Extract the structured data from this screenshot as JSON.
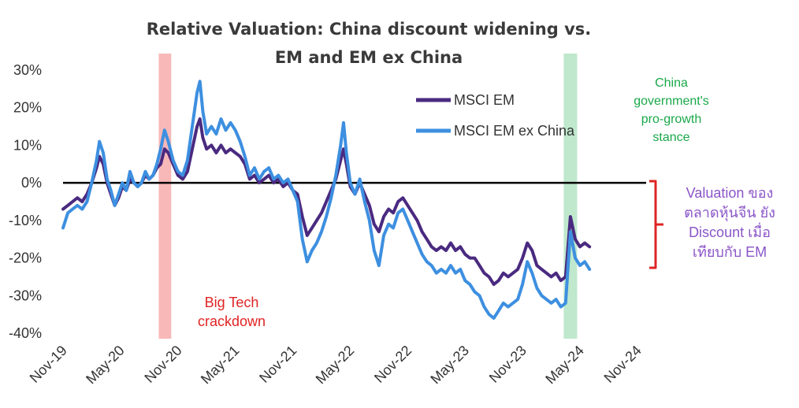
{
  "colors": {
    "msci_em": "#4a2a80",
    "msci_em_ex_china": "#3d8fe0",
    "red_band": "#f8b8b8",
    "green_band": "#bfe8cc",
    "bracket": "#e02424",
    "zero_line": "#000000"
  },
  "chart_data": {
    "type": "line",
    "title_line1": "Relative Valuation: China discount widening vs.",
    "title_line2": "EM and EM ex China",
    "xlabel": "",
    "ylabel": "",
    "x_ticks": [
      "Nov-19",
      "May-20",
      "Nov-20",
      "May-21",
      "Nov-21",
      "May-22",
      "Nov-22",
      "May-23",
      "Nov-23",
      "May-24",
      "Nov-24"
    ],
    "xlim": [
      0,
      60.5
    ],
    "ylim": [
      -40,
      30
    ],
    "y_ticks": [
      30,
      20,
      10,
      0,
      -10,
      -20,
      -30,
      -40
    ],
    "y_tick_labels": [
      "30%",
      "20%",
      "10%",
      "0%",
      "-10%",
      "-20%",
      "-30%",
      "-40%"
    ],
    "x_unit": "months since Nov-19",
    "series": [
      {
        "name": "MSCI EM",
        "color": "#4a2a80",
        "points": [
          [
            0,
            -7
          ],
          [
            0.5,
            -6
          ],
          [
            1,
            -5
          ],
          [
            1.5,
            -4
          ],
          [
            2,
            -5
          ],
          [
            2.5,
            -3
          ],
          [
            3,
            0
          ],
          [
            3.5,
            4
          ],
          [
            3.8,
            7
          ],
          [
            4.2,
            5
          ],
          [
            4.6,
            0
          ],
          [
            5,
            -3
          ],
          [
            5.4,
            -6
          ],
          [
            5.8,
            -4
          ],
          [
            6.2,
            -1
          ],
          [
            6.6,
            -2
          ],
          [
            7,
            1
          ],
          [
            7.4,
            0
          ],
          [
            7.8,
            -1
          ],
          [
            8.2,
            0
          ],
          [
            8.6,
            2
          ],
          [
            9,
            1
          ],
          [
            9.4,
            2
          ],
          [
            9.8,
            4
          ],
          [
            10.2,
            5
          ],
          [
            10.6,
            9
          ],
          [
            11,
            8
          ],
          [
            11.5,
            5
          ],
          [
            12,
            2
          ],
          [
            12.5,
            1
          ],
          [
            13,
            3
          ],
          [
            13.5,
            9
          ],
          [
            14,
            15
          ],
          [
            14.3,
            17
          ],
          [
            14.6,
            12
          ],
          [
            15,
            9
          ],
          [
            15.5,
            10
          ],
          [
            16,
            8
          ],
          [
            16.5,
            10
          ],
          [
            17,
            8
          ],
          [
            17.5,
            9
          ],
          [
            18,
            8
          ],
          [
            18.5,
            7
          ],
          [
            19,
            5
          ],
          [
            19.5,
            1
          ],
          [
            20,
            2
          ],
          [
            20.5,
            0
          ],
          [
            21,
            1
          ],
          [
            21.5,
            2
          ],
          [
            22,
            0
          ],
          [
            22.5,
            1
          ],
          [
            23,
            -1
          ],
          [
            23.5,
            0
          ],
          [
            24,
            -2
          ],
          [
            24.5,
            -3
          ],
          [
            25,
            -9
          ],
          [
            25.5,
            -14
          ],
          [
            26,
            -12
          ],
          [
            26.5,
            -10
          ],
          [
            27,
            -8
          ],
          [
            27.5,
            -5
          ],
          [
            28,
            -2
          ],
          [
            28.5,
            1
          ],
          [
            29,
            6
          ],
          [
            29.3,
            9
          ],
          [
            29.6,
            5
          ],
          [
            30,
            -1
          ],
          [
            30.5,
            -3
          ],
          [
            31,
            0
          ],
          [
            31.5,
            -3
          ],
          [
            32,
            -6
          ],
          [
            32.5,
            -11
          ],
          [
            33,
            -13
          ],
          [
            33.5,
            -9
          ],
          [
            34,
            -7
          ],
          [
            34.5,
            -8
          ],
          [
            35,
            -5
          ],
          [
            35.5,
            -4
          ],
          [
            36,
            -6
          ],
          [
            36.5,
            -8
          ],
          [
            37,
            -10
          ],
          [
            37.5,
            -13
          ],
          [
            38,
            -15
          ],
          [
            38.5,
            -17
          ],
          [
            39,
            -18
          ],
          [
            39.5,
            -17
          ],
          [
            40,
            -18
          ],
          [
            40.5,
            -16
          ],
          [
            41,
            -18
          ],
          [
            41.5,
            -17
          ],
          [
            42,
            -19
          ],
          [
            42.5,
            -20
          ],
          [
            43,
            -20
          ],
          [
            43.5,
            -22
          ],
          [
            44,
            -24
          ],
          [
            44.5,
            -25
          ],
          [
            45,
            -27
          ],
          [
            45.5,
            -26
          ],
          [
            46,
            -24
          ],
          [
            46.5,
            -25
          ],
          [
            47,
            -24
          ],
          [
            47.5,
            -23
          ],
          [
            48,
            -20
          ],
          [
            48.5,
            -16
          ],
          [
            49,
            -18
          ],
          [
            49.5,
            -22
          ],
          [
            50,
            -23
          ],
          [
            50.5,
            -24
          ],
          [
            51,
            -25
          ],
          [
            51.5,
            -24
          ],
          [
            52,
            -26
          ],
          [
            52.5,
            -25
          ],
          [
            53,
            -9
          ],
          [
            53.5,
            -15
          ],
          [
            54,
            -17
          ],
          [
            54.5,
            -16
          ],
          [
            55,
            -17
          ]
        ]
      },
      {
        "name": "MSCI EM ex China",
        "color": "#3d8fe0",
        "points": [
          [
            0,
            -12
          ],
          [
            0.5,
            -8
          ],
          [
            1,
            -7
          ],
          [
            1.5,
            -6
          ],
          [
            2,
            -7
          ],
          [
            2.5,
            -5
          ],
          [
            3,
            0
          ],
          [
            3.5,
            6
          ],
          [
            3.8,
            11
          ],
          [
            4.2,
            8
          ],
          [
            4.6,
            1
          ],
          [
            5,
            -2
          ],
          [
            5.4,
            -6
          ],
          [
            5.8,
            -3
          ],
          [
            6.2,
            0
          ],
          [
            6.6,
            -2
          ],
          [
            7,
            3
          ],
          [
            7.4,
            0
          ],
          [
            7.8,
            -1
          ],
          [
            8.2,
            0
          ],
          [
            8.6,
            3
          ],
          [
            9,
            1
          ],
          [
            9.4,
            2
          ],
          [
            9.8,
            5
          ],
          [
            10.2,
            9
          ],
          [
            10.6,
            14
          ],
          [
            11,
            11
          ],
          [
            11.5,
            6
          ],
          [
            12,
            3
          ],
          [
            12.5,
            2
          ],
          [
            13,
            6
          ],
          [
            13.5,
            15
          ],
          [
            14,
            24
          ],
          [
            14.3,
            27
          ],
          [
            14.6,
            19
          ],
          [
            15,
            13
          ],
          [
            15.5,
            15
          ],
          [
            16,
            13
          ],
          [
            16.5,
            17
          ],
          [
            17,
            14
          ],
          [
            17.5,
            16
          ],
          [
            18,
            14
          ],
          [
            18.5,
            11
          ],
          [
            19,
            7
          ],
          [
            19.5,
            2
          ],
          [
            20,
            4
          ],
          [
            20.5,
            1
          ],
          [
            21,
            3
          ],
          [
            21.5,
            4
          ],
          [
            22,
            1
          ],
          [
            22.5,
            2
          ],
          [
            23,
            0
          ],
          [
            23.5,
            1
          ],
          [
            24,
            -2
          ],
          [
            24.5,
            -5
          ],
          [
            25,
            -15
          ],
          [
            25.5,
            -21
          ],
          [
            26,
            -18
          ],
          [
            26.5,
            -16
          ],
          [
            27,
            -13
          ],
          [
            27.5,
            -9
          ],
          [
            28,
            -4
          ],
          [
            28.5,
            2
          ],
          [
            29,
            10
          ],
          [
            29.3,
            16
          ],
          [
            29.6,
            8
          ],
          [
            30,
            0
          ],
          [
            30.5,
            -3
          ],
          [
            31,
            1
          ],
          [
            31.5,
            -5
          ],
          [
            32,
            -10
          ],
          [
            32.5,
            -18
          ],
          [
            33,
            -22
          ],
          [
            33.5,
            -14
          ],
          [
            34,
            -11
          ],
          [
            34.5,
            -12
          ],
          [
            35,
            -8
          ],
          [
            35.5,
            -7
          ],
          [
            36,
            -10
          ],
          [
            36.5,
            -13
          ],
          [
            37,
            -16
          ],
          [
            37.5,
            -19
          ],
          [
            38,
            -21
          ],
          [
            38.5,
            -22
          ],
          [
            39,
            -24
          ],
          [
            39.5,
            -23
          ],
          [
            40,
            -24
          ],
          [
            40.5,
            -22
          ],
          [
            41,
            -24
          ],
          [
            41.5,
            -23
          ],
          [
            42,
            -26
          ],
          [
            42.5,
            -27
          ],
          [
            43,
            -29
          ],
          [
            43.5,
            -30
          ],
          [
            44,
            -33
          ],
          [
            44.5,
            -35
          ],
          [
            45,
            -36
          ],
          [
            45.5,
            -34
          ],
          [
            46,
            -32
          ],
          [
            46.5,
            -33
          ],
          [
            47,
            -32
          ],
          [
            47.5,
            -31
          ],
          [
            48,
            -27
          ],
          [
            48.5,
            -21
          ],
          [
            49,
            -24
          ],
          [
            49.5,
            -28
          ],
          [
            50,
            -30
          ],
          [
            50.5,
            -31
          ],
          [
            51,
            -32
          ],
          [
            51.5,
            -31
          ],
          [
            52,
            -33
          ],
          [
            52.5,
            -32
          ],
          [
            53,
            -13
          ],
          [
            53.5,
            -20
          ],
          [
            54,
            -22
          ],
          [
            54.5,
            -21
          ],
          [
            55,
            -23
          ]
        ]
      }
    ],
    "bands": [
      {
        "name": "Big Tech crackdown",
        "x_start": 10.0,
        "x_end": 11.3,
        "color": "#f8b8b8"
      },
      {
        "name": "China government's pro-growth stance",
        "x_start": 52.3,
        "x_end": 53.7,
        "color": "#bfe8cc"
      }
    ],
    "annotations": {
      "big_tech": [
        "Big Tech",
        "crackdown"
      ],
      "china_gov": [
        "China",
        "government's",
        "pro-growth",
        "stance"
      ],
      "valuation": [
        "Valuation ของ",
        "ตลาดหุ้นจีน ยัง",
        "Discount เมื่อ",
        "เทียบกับ EM"
      ]
    },
    "legend": {
      "position": "top-center",
      "entries": [
        "MSCI EM",
        "MSCI EM ex China"
      ]
    }
  }
}
